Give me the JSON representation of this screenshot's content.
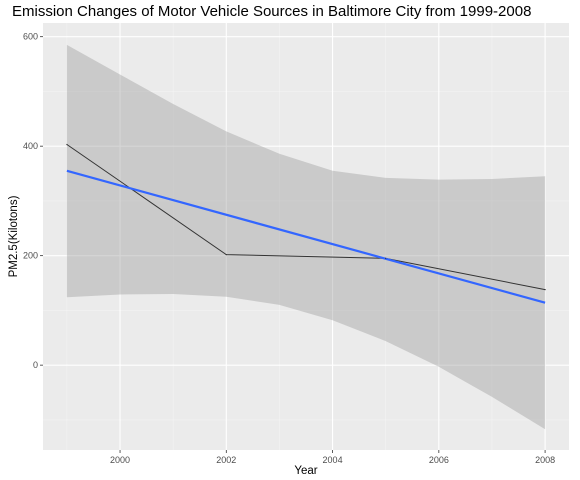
{
  "chart_data": {
    "type": "line",
    "title": "Emission Changes of Motor Vehicle Sources in Baltimore City from 1999-2008",
    "xlabel": "Year",
    "ylabel": "PM2.5(Kilotons)",
    "xlim": [
      1998.55,
      2008.45
    ],
    "ylim": [
      -155,
      625
    ],
    "x_ticks": [
      2000,
      2002,
      2004,
      2006,
      2008
    ],
    "y_ticks": [
      0,
      200,
      400,
      600
    ],
    "x_tick_labels": [
      "2000",
      "2002",
      "2004",
      "2006",
      "2008"
    ],
    "y_tick_labels": [
      "0",
      "200",
      "400",
      "600"
    ],
    "grid": true,
    "legend": "none",
    "series": [
      {
        "kind": "observed",
        "color": "#333333",
        "x": [
          1999,
          2002,
          2005,
          2008
        ],
        "y": [
          403,
          202,
          195,
          138
        ]
      },
      {
        "kind": "linear-fit",
        "color": "#3366ff",
        "x": [
          1999,
          2008
        ],
        "y": [
          355,
          114
        ]
      }
    ],
    "confidence_band": {
      "color": "#999999",
      "opacity": 0.4,
      "x": [
        1999,
        2000,
        2001,
        2002,
        2003,
        2004,
        2005,
        2006,
        2007,
        2008
      ],
      "lower": [
        124,
        129,
        130,
        125,
        110,
        82,
        44,
        -3,
        -58,
        -117
      ],
      "upper": [
        585,
        531,
        477,
        427,
        386,
        355,
        342,
        339,
        340,
        345
      ]
    }
  }
}
